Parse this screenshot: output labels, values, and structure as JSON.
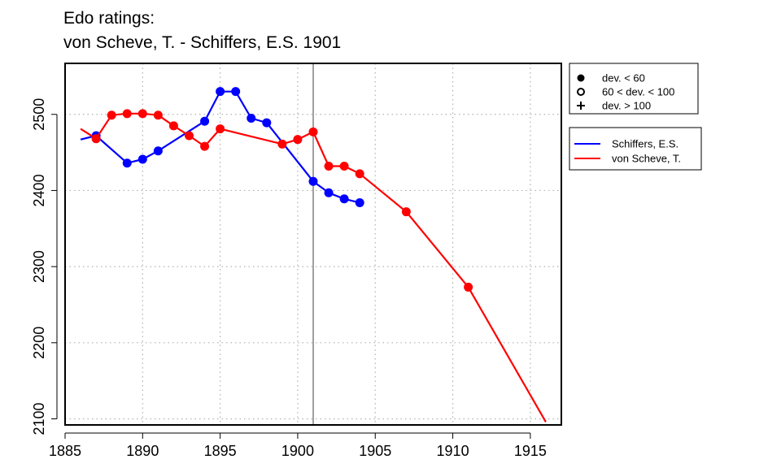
{
  "title_line1": "Edo ratings:",
  "title_line2": "von Scheve, T. - Schiffers, E.S. 1901",
  "colors": {
    "schiffers": "#0000ff",
    "scheve": "#ff0000",
    "vline": "#808080",
    "grid": "#b0b0b0"
  },
  "chart_data": {
    "type": "line",
    "title": "Edo ratings:\nvon Scheve, T. - Schiffers, E.S. 1901",
    "xlabel": "",
    "ylabel": "",
    "xlim": [
      1885,
      1917
    ],
    "ylim": [
      2092,
      2567
    ],
    "x_ticks": [
      1885,
      1890,
      1895,
      1900,
      1905,
      1910,
      1915
    ],
    "y_ticks": [
      2100,
      2200,
      2300,
      2400,
      2500
    ],
    "grid": true,
    "reference_year": 1901,
    "legend_points": {
      "placement": "top-right",
      "entries": [
        {
          "symbol": "filled-circle",
          "label": "dev. < 60"
        },
        {
          "symbol": "open-circle",
          "label": "60 < dev. < 100"
        },
        {
          "symbol": "plus",
          "label": "dev. > 100"
        }
      ]
    },
    "series": [
      {
        "name": "Schiffers, E.S.",
        "color": "#0000ff",
        "line": [
          [
            1886,
            2467
          ],
          [
            1887,
            2472
          ],
          [
            1889,
            2436
          ],
          [
            1890,
            2441
          ],
          [
            1891,
            2452
          ],
          [
            1894,
            2491
          ],
          [
            1895,
            2530
          ],
          [
            1896,
            2530
          ],
          [
            1897,
            2495
          ],
          [
            1898,
            2489
          ],
          [
            1901,
            2412
          ],
          [
            1902,
            2397
          ],
          [
            1903,
            2389
          ],
          [
            1904,
            2384
          ]
        ],
        "points": [
          [
            1887,
            2472
          ],
          [
            1889,
            2436
          ],
          [
            1890,
            2441
          ],
          [
            1891,
            2452
          ],
          [
            1894,
            2491
          ],
          [
            1895,
            2530
          ],
          [
            1896,
            2530
          ],
          [
            1897,
            2495
          ],
          [
            1898,
            2489
          ],
          [
            1901,
            2412
          ],
          [
            1902,
            2397
          ],
          [
            1903,
            2389
          ],
          [
            1904,
            2384
          ]
        ]
      },
      {
        "name": "von Scheve, T.",
        "color": "#ff0000",
        "line": [
          [
            1886,
            2481
          ],
          [
            1887,
            2468
          ],
          [
            1888,
            2499
          ],
          [
            1889,
            2501
          ],
          [
            1890,
            2501
          ],
          [
            1891,
            2499
          ],
          [
            1892,
            2485
          ],
          [
            1893,
            2472
          ],
          [
            1894,
            2458
          ],
          [
            1895,
            2481
          ],
          [
            1899,
            2461
          ],
          [
            1900,
            2467
          ],
          [
            1901,
            2477
          ],
          [
            1902,
            2432
          ],
          [
            1903,
            2432
          ],
          [
            1904,
            2422
          ],
          [
            1907,
            2372
          ],
          [
            1911,
            2273
          ],
          [
            1916,
            2096
          ]
        ],
        "points": [
          [
            1887,
            2468
          ],
          [
            1888,
            2499
          ],
          [
            1889,
            2501
          ],
          [
            1890,
            2501
          ],
          [
            1891,
            2499
          ],
          [
            1892,
            2485
          ],
          [
            1893,
            2472
          ],
          [
            1894,
            2458
          ],
          [
            1895,
            2481
          ],
          [
            1899,
            2461
          ],
          [
            1900,
            2467
          ],
          [
            1901,
            2477
          ],
          [
            1902,
            2432
          ],
          [
            1903,
            2432
          ],
          [
            1904,
            2422
          ],
          [
            1907,
            2372
          ],
          [
            1911,
            2273
          ]
        ]
      }
    ]
  }
}
